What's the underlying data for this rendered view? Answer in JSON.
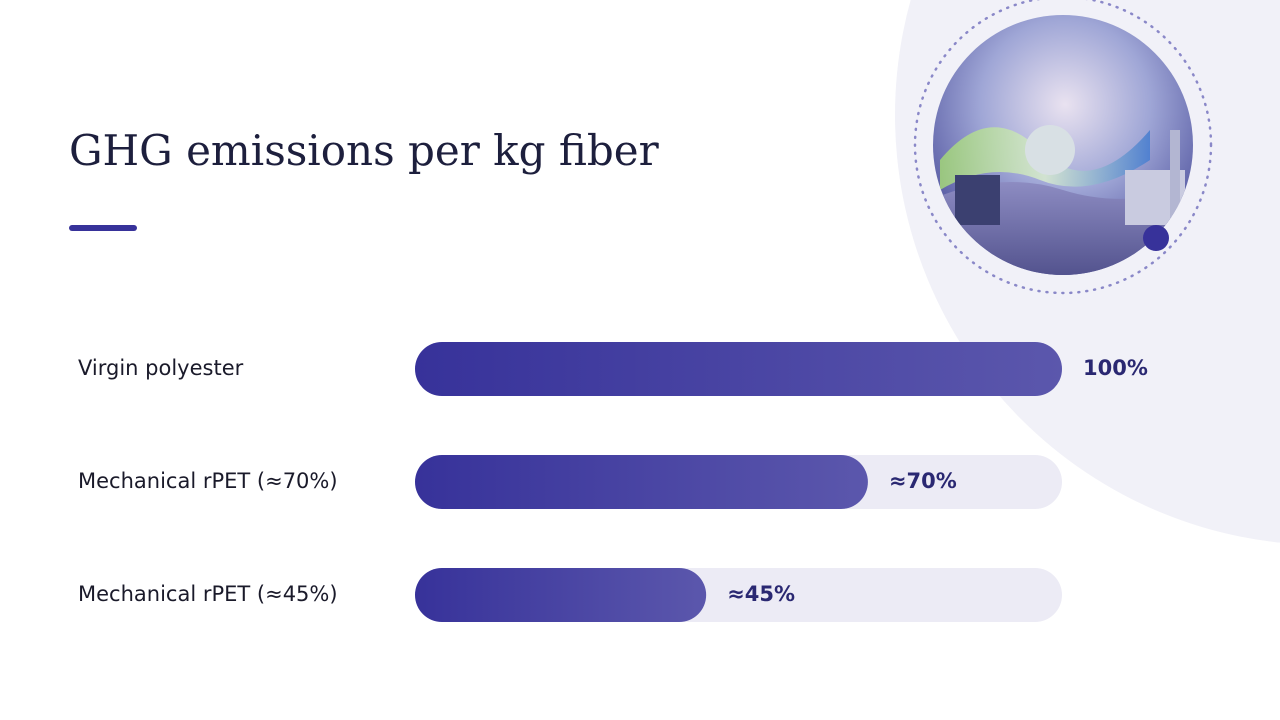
{
  "chart_data": {
    "type": "bar",
    "orientation": "horizontal",
    "title": "GHG emissions per kg fiber",
    "categories": [
      "Virgin polyester",
      "Mechanical rPET (≈70%)",
      "Mechanical rPET (≈45%)"
    ],
    "values": [
      100,
      70,
      45
    ],
    "value_labels": [
      "100%",
      "≈70%",
      "≈45%"
    ],
    "color": "#37329a",
    "xlim": [
      0,
      100
    ]
  }
}
